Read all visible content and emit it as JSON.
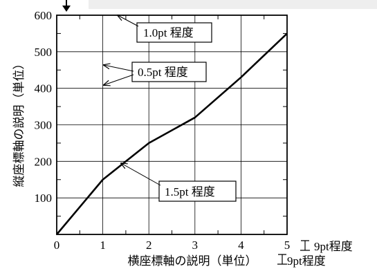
{
  "chart_data": {
    "type": "line",
    "x": [
      0,
      1,
      2,
      3,
      4,
      5
    ],
    "series": [
      {
        "values": [
          0,
          150,
          250,
          320,
          430,
          550
        ]
      }
    ],
    "xlim": [
      0,
      5
    ],
    "ylim": [
      0,
      600
    ],
    "x_ticks": [
      0,
      1,
      2,
      3,
      4,
      5
    ],
    "x_minor_ticks": [
      0.5,
      1.5,
      2.5,
      3.5,
      4.5
    ],
    "y_ticks": [
      100,
      200,
      300,
      400,
      500,
      600
    ],
    "y_minor_ticks": [
      50,
      150,
      250,
      350,
      450,
      550
    ],
    "grid": true,
    "xlabel": "横座標軸の説明（単位）",
    "ylabel": "縦座標軸の説明（単位）",
    "x_tick_size_note": "9pt程度",
    "xlabel_size_note": "9pt程度",
    "callouts": {
      "frame": "1.0pt 程度",
      "grid": "0.5pt 程度",
      "line": "1.5pt 程度"
    }
  }
}
